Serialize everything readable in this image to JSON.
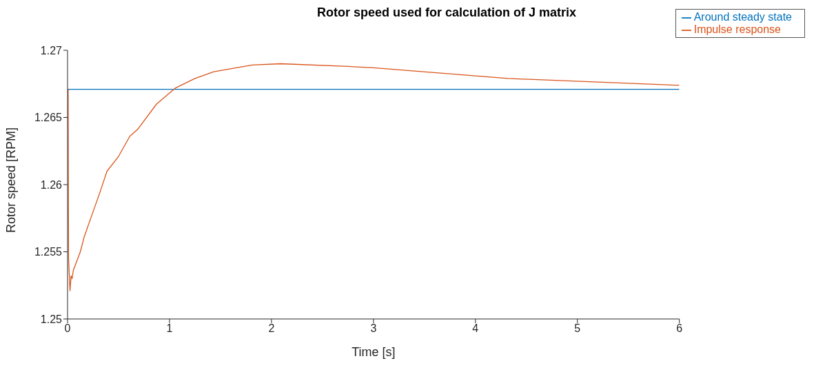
{
  "chart_data": {
    "type": "line",
    "title": "Rotor speed used for calculation of J matrix",
    "xlabel": "Time [s]",
    "ylabel": "Rotor speed [RPM]",
    "xlim": [
      0,
      6
    ],
    "xticks": [
      0,
      1,
      2,
      3,
      4,
      5,
      6
    ],
    "ylim": [
      1.25,
      1.27
    ],
    "yticks": [
      1.25,
      1.255,
      1.26,
      1.265,
      1.27
    ],
    "grid": false,
    "legend": "top right",
    "marker": "none",
    "line_style": "solid",
    "series": [
      {
        "name": "Around steady state",
        "color": "#0072bd",
        "x": [
          0,
          6
        ],
        "values": [
          1.2671,
          1.2671
        ]
      },
      {
        "name": "Impulse response",
        "color": "#d95319",
        "x": [
          0.006,
          0.01,
          0.024,
          0.035,
          0.045,
          0.056,
          0.125,
          0.163,
          0.237,
          0.312,
          0.387,
          0.5,
          0.611,
          0.686,
          0.873,
          1.06,
          1.25,
          1.434,
          1.81,
          2.09,
          2.75,
          3,
          4,
          4.32,
          5.96,
          6
        ],
        "values": [
          1.2671,
          1.2545,
          1.2521,
          1.2532,
          1.253,
          1.2536,
          1.255,
          1.2561,
          1.2577,
          1.2593,
          1.261,
          1.2621,
          1.2636,
          1.2641,
          1.266,
          1.2672,
          1.2679,
          1.2684,
          1.2689,
          1.269,
          1.2688,
          1.2687,
          1.2681,
          1.2679,
          1.2674,
          1.2674
        ]
      }
    ]
  }
}
